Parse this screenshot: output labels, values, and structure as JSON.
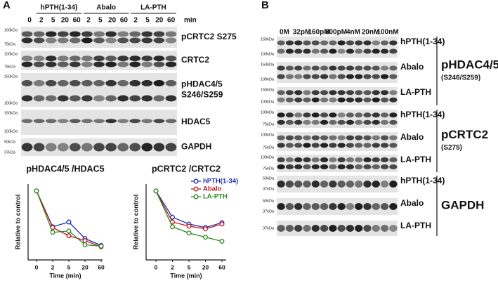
{
  "panel_labels": [
    "A",
    "B"
  ],
  "panel_a": {
    "group_headers": [
      "hPTH(1-34)",
      "Abalo",
      "LA-PTH"
    ],
    "lane_labels": [
      "0",
      "2",
      "5",
      "20",
      "60",
      "2",
      "5",
      "20",
      "60",
      "2",
      "5",
      "20",
      "60"
    ],
    "unit": "min",
    "blots": [
      {
        "label": [
          "pCRTC2 S275"
        ],
        "markers": [
          "100kDa",
          "75kDa"
        ]
      },
      {
        "label": [
          "CRTC2"
        ],
        "markers": [
          "100kDa",
          "75kDa"
        ]
      },
      {
        "label": [
          "pHDAC4/5",
          "S246/S259"
        ],
        "markers": [
          "150kDa",
          "100kDa"
        ]
      },
      {
        "label": [
          "HDAC5"
        ],
        "markers": [
          "150kDa",
          "100kDa"
        ]
      },
      {
        "label": [
          "GAPDH"
        ],
        "markers": [
          "50kDa",
          "37kDa"
        ]
      }
    ]
  },
  "panel_b": {
    "concentration_labels": [
      "0M",
      "32pM",
      "160pM",
      "800pM",
      "4nM",
      "20nM",
      "100nM"
    ],
    "sections": [
      {
        "title": [
          "pHDAC4/5",
          "(S246/S259)"
        ],
        "rows": [
          {
            "label": "hPTH(1-34)",
            "markers": [
              "150kDa",
              "100kDa"
            ]
          },
          {
            "label": "Abalo",
            "markers": [
              "150kDa",
              "100kDa"
            ]
          },
          {
            "label": "LA-PTH",
            "markers": [
              "150kDa",
              "100kDa"
            ]
          }
        ]
      },
      {
        "title": [
          "pCRTC2",
          "(S275)"
        ],
        "rows": [
          {
            "label": "hPTH(1-34)",
            "markers": [
              "100kDa",
              "75kDa"
            ]
          },
          {
            "label": "Abalo",
            "markers": [
              "100kDa",
              "75kDa"
            ]
          },
          {
            "label": "LA-PTH",
            "markers": [
              "100kDa",
              "75kDa"
            ]
          }
        ]
      },
      {
        "title": [
          "GAPDH"
        ],
        "rows": [
          {
            "label": "hPTH(1-34)",
            "markers": [
              "50kDa",
              "37kDa"
            ]
          },
          {
            "label": "Abalo",
            "markers": [
              "50kDa",
              "37kDa"
            ]
          },
          {
            "label": "LA-PTH",
            "markers": [
              "37kDa"
            ]
          }
        ]
      }
    ]
  },
  "chart_data": [
    {
      "type": "line",
      "title": "pHDAC4/5 /HDAC5",
      "x_label": "Time (min)",
      "y_label": "Relative to control",
      "categories": [
        "0",
        "2",
        "5",
        "20",
        "60"
      ],
      "ylim": [
        0,
        1.1
      ],
      "series": [
        {
          "color": "#1f2bb0",
          "values": [
            1,
            0.48,
            0.55,
            0.31,
            0.21
          ]
        },
        {
          "color": "#c0161b",
          "values": [
            1,
            0.47,
            0.35,
            0.28,
            0.19
          ]
        },
        {
          "color": "#2a8a1e",
          "values": [
            1,
            0.4,
            0.42,
            0.22,
            0.2
          ]
        }
      ]
    },
    {
      "type": "line",
      "title": "pCRTC2 /CRTC2",
      "x_label": "Time (min)",
      "y_label": "Relative to control",
      "categories": [
        "0",
        "2",
        "5",
        "20",
        "60"
      ],
      "ylim": [
        0,
        1.1
      ],
      "legend": "upper right",
      "series": [
        {
          "name": "hPTH(1-34)",
          "color": "#1f2bb0",
          "values": [
            1,
            0.62,
            0.52,
            0.47,
            0.54
          ]
        },
        {
          "name": "Abalo",
          "color": "#c0161b",
          "values": [
            1,
            0.55,
            0.49,
            0.45,
            0.52
          ]
        },
        {
          "name": "LA-PTH",
          "color": "#2a8a1e",
          "values": [
            1,
            0.48,
            0.39,
            0.33,
            0.27
          ]
        }
      ]
    }
  ]
}
